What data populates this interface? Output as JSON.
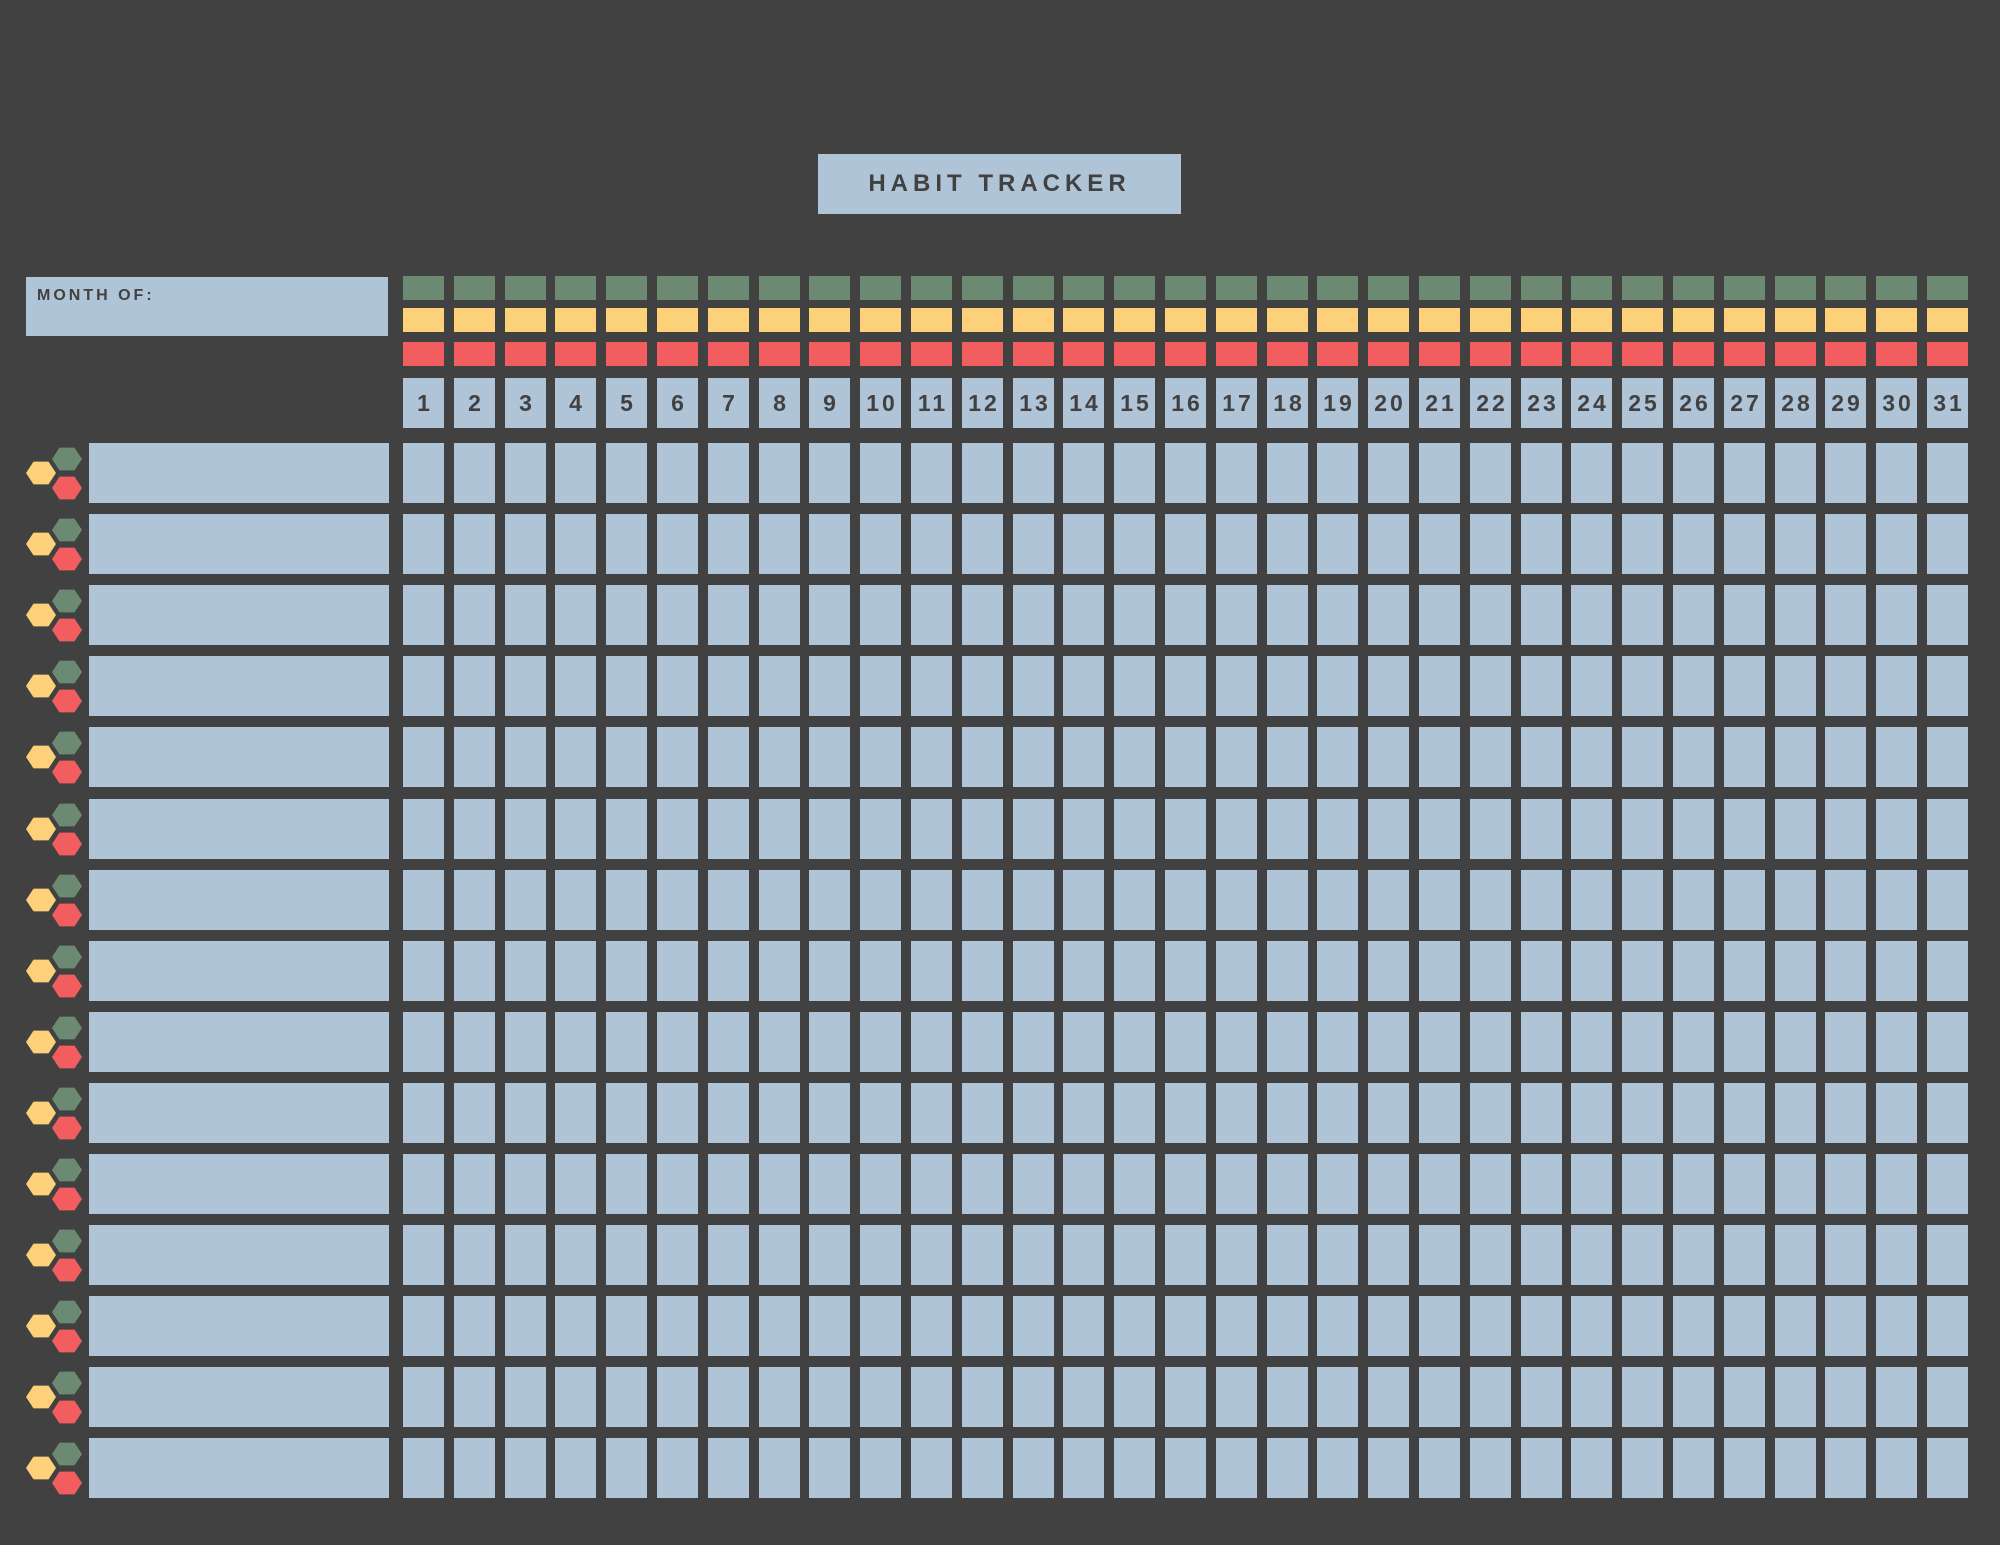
{
  "title": "HABIT TRACKER",
  "month_label": "MONTH OF:",
  "days": [
    "1",
    "2",
    "3",
    "4",
    "5",
    "6",
    "7",
    "8",
    "9",
    "10",
    "11",
    "12",
    "13",
    "14",
    "15",
    "16",
    "17",
    "18",
    "19",
    "20",
    "21",
    "22",
    "23",
    "24",
    "25",
    "26",
    "27",
    "28",
    "29",
    "30",
    "31"
  ],
  "habit_row_count": 15,
  "colors": {
    "background": "#414141",
    "box": "#b0c4d8",
    "green": "#6b8a71",
    "yellow": "#fdd17a",
    "red": "#f25e60"
  }
}
